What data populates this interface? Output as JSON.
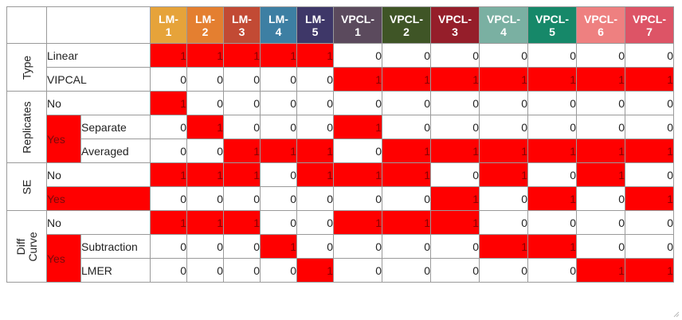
{
  "columns": [
    {
      "l1": "LM-",
      "l2": "1",
      "color": "#E6A33A"
    },
    {
      "l1": "LM-",
      "l2": "2",
      "color": "#E47F30"
    },
    {
      "l1": "LM-",
      "l2": "3",
      "color": "#C24A34"
    },
    {
      "l1": "LM-",
      "l2": "4",
      "color": "#3D7FA3"
    },
    {
      "l1": "LM-",
      "l2": "5",
      "color": "#3E3768"
    },
    {
      "l1": "VPCL-",
      "l2": "1",
      "color": "#5B4A5D"
    },
    {
      "l1": "VPCL-",
      "l2": "2",
      "color": "#3F5526"
    },
    {
      "l1": "VPCL-",
      "l2": "3",
      "color": "#951E2A"
    },
    {
      "l1": "VPCL-",
      "l2": "4",
      "color": "#7AB0A2"
    },
    {
      "l1": "VPCL-",
      "l2": "5",
      "color": "#168869"
    },
    {
      "l1": "VPCL-",
      "l2": "6",
      "color": "#EE8080"
    },
    {
      "l1": "VPCL-",
      "l2": "7",
      "color": "#DD5466"
    }
  ],
  "groups": [
    {
      "label": [
        "Type"
      ],
      "rows": 2
    },
    {
      "label": [
        "Replicates"
      ],
      "rows": 3
    },
    {
      "label": [
        "SE"
      ],
      "rows": 2
    },
    {
      "label": [
        "Diff",
        "Curve"
      ],
      "rows": 3
    }
  ],
  "rows": [
    {
      "group": 0,
      "label": "Linear",
      "values": [
        1,
        1,
        1,
        1,
        1,
        0,
        0,
        0,
        0,
        0,
        0,
        0
      ]
    },
    {
      "group": 0,
      "label": "VIPCAL",
      "values": [
        0,
        0,
        0,
        0,
        0,
        1,
        1,
        1,
        1,
        1,
        1,
        1
      ]
    },
    {
      "group": 1,
      "label": "No",
      "values": [
        1,
        0,
        0,
        0,
        0,
        0,
        0,
        0,
        0,
        0,
        0,
        0
      ]
    },
    {
      "group": 1,
      "sub": "Yes",
      "label": "Separate",
      "values": [
        0,
        1,
        0,
        0,
        0,
        1,
        0,
        0,
        0,
        0,
        0,
        0
      ]
    },
    {
      "group": 1,
      "sub": "Yes",
      "label": "Averaged",
      "values": [
        0,
        0,
        1,
        1,
        1,
        0,
        1,
        1,
        1,
        1,
        1,
        1
      ]
    },
    {
      "group": 2,
      "label": "No",
      "values": [
        1,
        1,
        1,
        0,
        1,
        1,
        1,
        0,
        1,
        0,
        1,
        0
      ]
    },
    {
      "group": 2,
      "label": "Yes",
      "labelRed": true,
      "values": [
        0,
        0,
        0,
        0,
        0,
        0,
        0,
        1,
        0,
        1,
        0,
        1
      ]
    },
    {
      "group": 3,
      "label": "No",
      "values": [
        1,
        1,
        1,
        0,
        0,
        1,
        1,
        1,
        0,
        0,
        0,
        0
      ]
    },
    {
      "group": 3,
      "sub": "Yes",
      "label": "Subtraction",
      "values": [
        0,
        0,
        0,
        1,
        0,
        0,
        0,
        0,
        1,
        1,
        0,
        0
      ]
    },
    {
      "group": 3,
      "sub": "Yes",
      "label": "LMER",
      "values": [
        0,
        0,
        0,
        0,
        1,
        0,
        0,
        0,
        0,
        0,
        1,
        1
      ]
    }
  ],
  "colors": {
    "on": "#ff0000",
    "off": "#ffffff",
    "border": "#9a9a9a"
  }
}
